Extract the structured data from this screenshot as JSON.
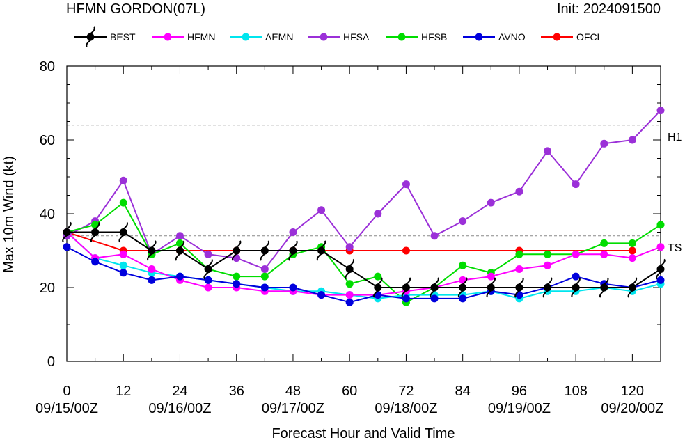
{
  "chart_data": {
    "type": "line",
    "title": "HFMN GORDON(07L)",
    "init_label": "Init: 2024091500",
    "xlabel": "Forecast Hour and Valid Time",
    "ylabel": "Max 10m Wind (kt)",
    "xlim": [
      0,
      126
    ],
    "ylim": [
      0,
      80
    ],
    "grid": false,
    "legend_position": "top",
    "x_ticks": [
      0,
      12,
      24,
      36,
      48,
      60,
      72,
      84,
      96,
      108,
      120
    ],
    "y_ticks": [
      0,
      20,
      40,
      60,
      80
    ],
    "date_ticks": [
      {
        "x": 0,
        "label": "09/15/00Z"
      },
      {
        "x": 24,
        "label": "09/16/00Z"
      },
      {
        "x": 48,
        "label": "09/17/00Z"
      },
      {
        "x": 72,
        "label": "09/18/00Z"
      },
      {
        "x": 96,
        "label": "09/19/00Z"
      },
      {
        "x": 120,
        "label": "09/20/00Z"
      }
    ],
    "threshold_lines": [
      {
        "label": "H1",
        "value": 64
      },
      {
        "label": "TS",
        "value": 34
      }
    ],
    "series": [
      {
        "name": "BEST",
        "color": "#000000",
        "marker": "hurricane-symbol",
        "x": [
          0,
          6,
          12,
          18,
          24,
          30,
          36,
          42,
          48,
          54,
          60,
          66,
          72,
          78,
          84,
          90,
          96,
          102,
          108,
          114,
          120,
          126
        ],
        "y": [
          35,
          35,
          35,
          30,
          30,
          25,
          30,
          30,
          30,
          30,
          25,
          20,
          20,
          20,
          20,
          20,
          20,
          20,
          20,
          20,
          20,
          25
        ]
      },
      {
        "name": "HFMN",
        "color": "#ff00ff",
        "marker": "dot",
        "x": [
          0,
          6,
          12,
          18,
          24,
          30,
          36,
          42,
          48,
          54,
          60,
          66,
          72,
          78,
          84,
          90,
          96,
          102,
          108,
          114,
          120,
          126
        ],
        "y": [
          35,
          28,
          29,
          25,
          22,
          20,
          20,
          19,
          19,
          18,
          18,
          18,
          19,
          20,
          22,
          23,
          25,
          26,
          29,
          29,
          28,
          31
        ]
      },
      {
        "name": "AEMN",
        "color": "#00e5ee",
        "marker": "dot",
        "x": [
          0,
          6,
          12,
          18,
          24,
          30,
          36,
          42,
          48,
          54,
          60,
          66,
          72,
          78,
          84,
          90,
          96,
          102,
          108,
          114,
          120,
          126
        ],
        "y": [
          35,
          28,
          26,
          24,
          23,
          22,
          21,
          20,
          19,
          19,
          18,
          17,
          18,
          18,
          18,
          19,
          17,
          19,
          19,
          20,
          19,
          21
        ]
      },
      {
        "name": "HFSA",
        "color": "#9b30d8",
        "marker": "dot",
        "x": [
          0,
          6,
          12,
          18,
          24,
          30,
          36,
          42,
          48,
          54,
          60,
          66,
          72,
          78,
          84,
          90,
          96,
          102,
          108,
          114,
          120,
          126
        ],
        "y": [
          34,
          38,
          49,
          29,
          34,
          29,
          28,
          25,
          35,
          41,
          31,
          40,
          48,
          34,
          38,
          43,
          46,
          57,
          48,
          59,
          60,
          68
        ]
      },
      {
        "name": "HFSB",
        "color": "#00dd00",
        "marker": "dot",
        "x": [
          0,
          6,
          12,
          18,
          24,
          30,
          36,
          42,
          48,
          54,
          60,
          66,
          72,
          78,
          84,
          90,
          96,
          102,
          108,
          114,
          120,
          126
        ],
        "y": [
          35,
          37,
          43,
          29,
          32,
          25,
          23,
          23,
          29,
          31,
          21,
          23,
          16,
          20,
          26,
          24,
          29,
          29,
          29,
          32,
          32,
          37
        ]
      },
      {
        "name": "AVNO",
        "color": "#0000dd",
        "marker": "dot",
        "x": [
          0,
          6,
          12,
          18,
          24,
          30,
          36,
          42,
          48,
          54,
          60,
          66,
          72,
          78,
          84,
          90,
          96,
          102,
          108,
          114,
          120,
          126
        ],
        "y": [
          31,
          27,
          24,
          22,
          23,
          22,
          21,
          20,
          20,
          18,
          16,
          18,
          17,
          17,
          17,
          19,
          18,
          20,
          23,
          21,
          20,
          22
        ]
      },
      {
        "name": "OFCL",
        "color": "#ff0000",
        "marker": "dot",
        "x": [
          0,
          12,
          24,
          36,
          48,
          60,
          72,
          96,
          120
        ],
        "y": [
          35,
          30,
          30,
          30,
          30,
          30,
          30,
          30,
          30
        ]
      }
    ]
  }
}
